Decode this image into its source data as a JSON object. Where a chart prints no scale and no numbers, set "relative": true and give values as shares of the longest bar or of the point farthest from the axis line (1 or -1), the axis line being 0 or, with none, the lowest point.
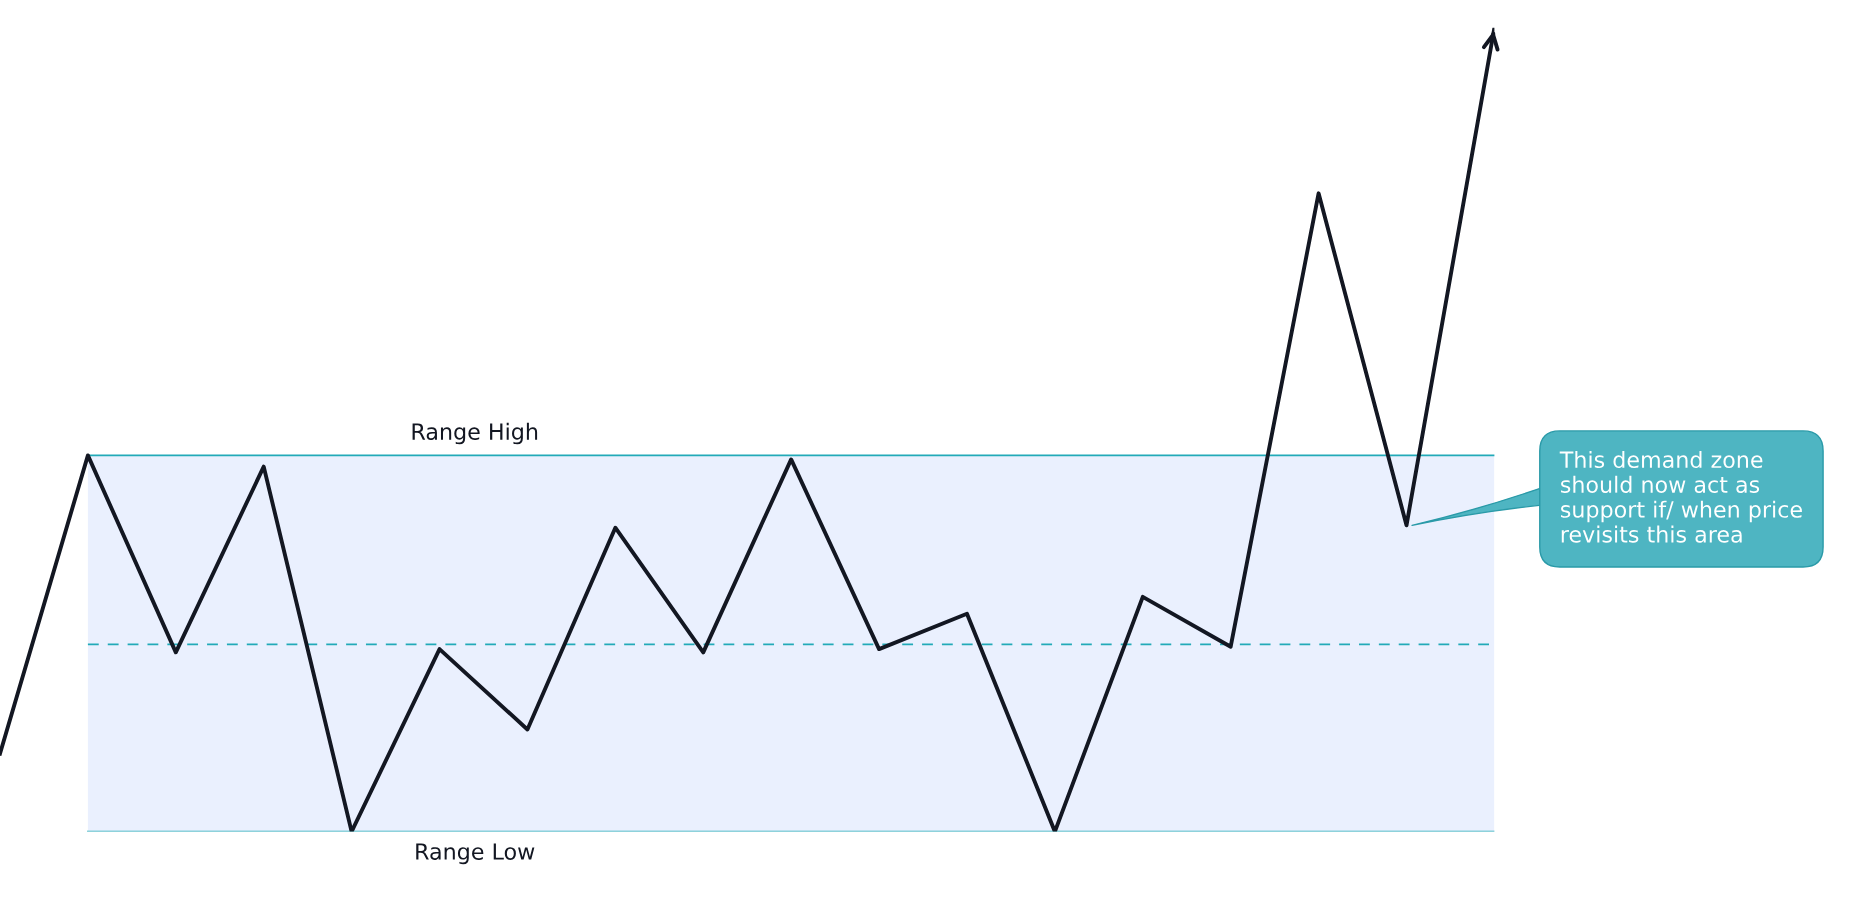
{
  "chart_data": {
    "type": "line",
    "relative": true,
    "categories": [
      null,
      null,
      null,
      null,
      null,
      null,
      null,
      null,
      null,
      null,
      null,
      null,
      null,
      null,
      null,
      null,
      null,
      null
    ],
    "series": [
      {
        "color": "#131722",
        "values": [
          0.097,
          0.468,
          0.223,
          0.454,
          0,
          0.227,
          0.127,
          0.378,
          0.223,
          0.463,
          0.227,
          0.271,
          0,
          0.292,
          0.23,
          0.794,
          0.381,
          1
        ]
      }
    ],
    "bands": [
      {
        "axis": "y",
        "from": 0,
        "to": 0.468,
        "color": "#eaf0fe"
      }
    ],
    "ref_lines": [
      {
        "axis": "y",
        "value": 0.468,
        "label": "Range High",
        "color": "#22aab8",
        "line_style": "solid"
      },
      {
        "axis": "y",
        "value": 0.233,
        "color": "#22aab8",
        "line_style": "dashed"
      },
      {
        "axis": "y",
        "value": 0,
        "label": "Range Low",
        "color": "#22aab8",
        "line_style": "solid"
      }
    ],
    "annotations": [
      "This demand zone should now act as support if/ when price revisits this area"
    ],
    "legend": false,
    "marker": "none",
    "line_style": "solid",
    "tick_labels": false
  }
}
